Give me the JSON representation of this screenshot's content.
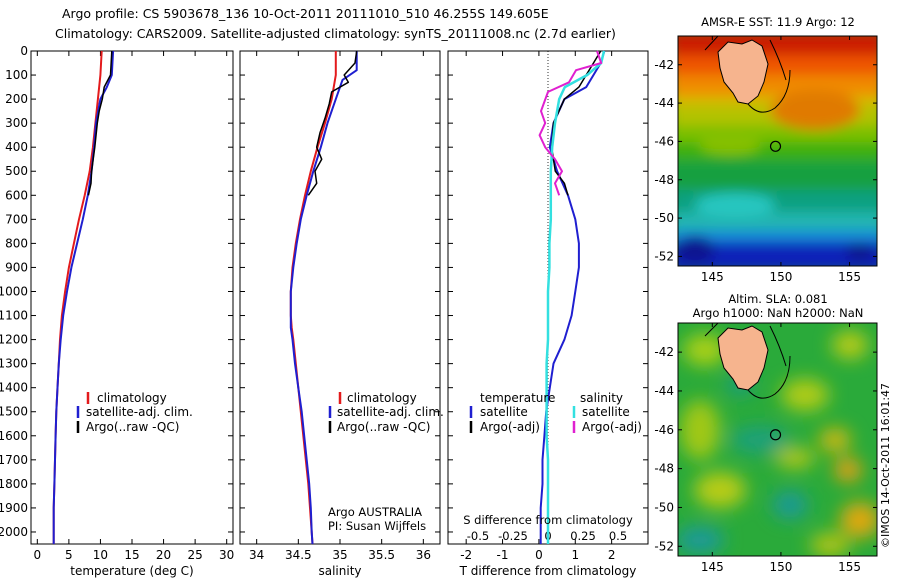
{
  "header": {
    "line1": "Argo profile: CS 5903678_136 10-Oct-2011 20111010_510 46.255S 149.605E",
    "line2": "Climatology: CARS2009. Satellite-adjusted climatology: synTS_20111008.nc (2.7d earlier)"
  },
  "credit": "©IMOS 14-Oct-2011 16:01:47",
  "attribution": {
    "line1": "Argo AUSTRALIA",
    "line2": "PI: Susan Wijffels"
  },
  "colors": {
    "climatology": "#e31a1c",
    "satellite": "#1f1fd0",
    "argo": "#000000",
    "sat_salinity": "#33e0e0",
    "argo_salinity": "#e020d0",
    "land": "#f6b48e"
  },
  "chart_data": [
    {
      "id": "temperature",
      "type": "line",
      "xlabel": "temperature (deg C)",
      "ylabel": "",
      "xlim": [
        -1,
        31
      ],
      "ylim": [
        2050,
        0
      ],
      "xticks": [
        "0",
        "5",
        "10",
        "15",
        "20",
        "25",
        "30"
      ],
      "yticks": [
        "0",
        "100",
        "200",
        "300",
        "400",
        "500",
        "600",
        "700",
        "800",
        "900",
        "1000",
        "1100",
        "1200",
        "1300",
        "1400",
        "1500",
        "1600",
        "1700",
        "1800",
        "1900",
        "2000"
      ],
      "legend": [
        "climatology",
        "satellite-adj. clim.",
        "Argo(..raw -QC)"
      ],
      "series": [
        {
          "name": "climatology",
          "depth": [
            0,
            100,
            200,
            300,
            400,
            500,
            600,
            700,
            800,
            900,
            1000,
            1100,
            1200,
            1300,
            1400,
            1500,
            1600,
            1700,
            1800,
            1900,
            2000,
            2050
          ],
          "values": [
            10.2,
            10.0,
            9.6,
            9.2,
            8.8,
            8.3,
            7.5,
            6.6,
            5.8,
            5.0,
            4.4,
            3.9,
            3.6,
            3.4,
            3.2,
            3.0,
            2.9,
            2.8,
            2.7,
            2.6,
            2.6,
            2.6
          ]
        },
        {
          "name": "satellite-adj. clim.",
          "depth": [
            0,
            100,
            150,
            200,
            300,
            400,
            500,
            600,
            700,
            800,
            900,
            1000,
            1100,
            1200,
            1300,
            1400,
            1500,
            1600,
            1700,
            1800,
            1900,
            2000,
            2050
          ],
          "values": [
            12.0,
            11.8,
            11.0,
            10.0,
            9.3,
            9.0,
            8.6,
            8.0,
            7.2,
            6.3,
            5.4,
            4.7,
            4.1,
            3.7,
            3.4,
            3.2,
            3.0,
            2.9,
            2.8,
            2.7,
            2.6,
            2.6,
            2.6
          ]
        },
        {
          "name": "Argo(..raw -QC)",
          "depth": [
            0,
            100,
            150,
            200,
            250,
            300,
            400,
            500,
            550,
            600
          ],
          "values": [
            11.8,
            11.6,
            10.6,
            10.3,
            9.8,
            9.5,
            9.1,
            8.6,
            8.5,
            8.1
          ]
        }
      ]
    },
    {
      "id": "salinity",
      "type": "line",
      "xlabel": "salinity",
      "ylabel": "",
      "xlim": [
        33.8,
        36.2
      ],
      "ylim": [
        2050,
        0
      ],
      "xticks": [
        "34",
        "34.5",
        "35",
        "35.5",
        "36"
      ],
      "legend": [
        "climatology",
        "satellite-adj. clim.",
        "Argo(..raw -QC)"
      ],
      "series": [
        {
          "name": "climatology",
          "depth": [
            0,
            100,
            200,
            300,
            400,
            500,
            600,
            700,
            800,
            900,
            1000,
            1100,
            1150,
            1200,
            1300,
            1400,
            1500,
            1600,
            1700,
            1800,
            1900,
            2000,
            2050
          ],
          "values": [
            34.95,
            34.95,
            34.9,
            34.82,
            34.73,
            34.65,
            34.58,
            34.52,
            34.47,
            34.43,
            34.41,
            34.41,
            34.42,
            34.44,
            34.47,
            34.5,
            34.53,
            34.56,
            34.59,
            34.62,
            34.64,
            34.66,
            34.67
          ]
        },
        {
          "name": "satellite-adj. clim.",
          "depth": [
            0,
            80,
            120,
            200,
            300,
            400,
            500,
            600,
            700,
            800,
            900,
            1000,
            1100,
            1150,
            1200,
            1300,
            1400,
            1500,
            1600,
            1700,
            1800,
            1900,
            2000,
            2050
          ],
          "values": [
            35.2,
            35.2,
            35.03,
            34.95,
            34.85,
            34.77,
            34.68,
            34.6,
            34.53,
            34.48,
            34.44,
            34.41,
            34.41,
            34.41,
            34.43,
            34.46,
            34.5,
            34.54,
            34.57,
            34.6,
            34.63,
            34.65,
            34.66,
            34.67
          ]
        },
        {
          "name": "Argo(..raw -QC)",
          "depth": [
            0,
            50,
            100,
            130,
            170,
            220,
            280,
            340,
            400,
            450,
            500,
            550,
            600
          ],
          "values": [
            35.2,
            35.18,
            35.05,
            35.1,
            34.9,
            34.87,
            34.82,
            34.76,
            34.72,
            34.78,
            34.7,
            34.72,
            34.62
          ]
        }
      ]
    },
    {
      "id": "differences",
      "type": "line",
      "xlabel": "T difference from climatology",
      "xlabel_top": "S difference from climatology",
      "xlim": [
        -2.5,
        3.0
      ],
      "ylim": [
        2050,
        0
      ],
      "xticks": [
        "-2",
        "-1",
        "0",
        "1",
        "2"
      ],
      "sticks": [
        "-0.5",
        "-0.25",
        "0",
        "0.25",
        "0.5"
      ],
      "legend_temperature_title": "temperature",
      "legend_salinity_title": "salinity",
      "legend": [
        "satellite",
        "Argo(-adj)",
        "satellite",
        "Argo(-adj)"
      ],
      "series": [
        {
          "name": "T satellite",
          "depth": [
            0,
            50,
            100,
            150,
            200,
            300,
            400,
            500,
            600,
            700,
            800,
            900,
            1000,
            1100,
            1200,
            1300,
            1400,
            1500,
            1600,
            1700,
            1800,
            1900,
            2000,
            2050
          ],
          "values": [
            1.8,
            1.7,
            1.5,
            1.3,
            0.7,
            0.4,
            0.3,
            0.5,
            0.8,
            1.0,
            1.1,
            1.1,
            1.0,
            0.9,
            0.7,
            0.4,
            0.3,
            0.2,
            0.15,
            0.1,
            0.1,
            0.05,
            0.05,
            0.05
          ]
        },
        {
          "name": "T Argo(-adj)",
          "depth": [
            0,
            50,
            100,
            150,
            200,
            300,
            400,
            500,
            550,
            600
          ],
          "values": [
            1.7,
            1.5,
            1.3,
            1.1,
            0.7,
            0.4,
            0.35,
            0.45,
            0.7,
            0.8
          ]
        },
        {
          "name": "S satellite",
          "depth": [
            0,
            50,
            100,
            150,
            200,
            300,
            400,
            500,
            600,
            700,
            800,
            900,
            1000,
            1100,
            1200,
            1300,
            1400,
            1500,
            1600,
            1700,
            1800,
            1900,
            2000,
            2050
          ],
          "values": [
            0.4,
            0.38,
            0.28,
            0.12,
            0.08,
            0.05,
            0.03,
            0.02,
            0.02,
            0.02,
            0.01,
            0.01,
            0.0,
            0.0,
            0.0,
            -0.01,
            -0.01,
            -0.01,
            -0.01,
            0.0,
            0.0,
            0.0,
            0.0,
            0.0
          ]
        },
        {
          "name": "S Argo(-adj)",
          "depth": [
            0,
            50,
            80,
            130,
            170,
            250,
            300,
            350,
            400,
            450,
            500,
            550,
            600
          ],
          "values": [
            0.35,
            0.38,
            0.2,
            0.15,
            0.0,
            -0.05,
            -0.02,
            -0.06,
            -0.02,
            0.05,
            0.1,
            0.05,
            0.08
          ]
        }
      ]
    },
    {
      "id": "sst_map",
      "type": "heatmap",
      "title": "AMSR-E SST: 11.9 Argo: 12",
      "xticks": [
        "145",
        "150",
        "155"
      ],
      "yticks": [
        "-42",
        "-44",
        "-46",
        "-48",
        "-50",
        "-52"
      ],
      "xlim": [
        142.5,
        157
      ],
      "ylim": [
        -52.5,
        -40.5
      ],
      "argo_position": [
        149.605,
        -46.255
      ]
    },
    {
      "id": "sla_map",
      "type": "heatmap",
      "title_line1": "Altim. SLA: 0.081",
      "title_line2": "Argo h1000: NaN h2000: NaN",
      "xticks": [
        "145",
        "150",
        "155"
      ],
      "yticks": [
        "-42",
        "-44",
        "-46",
        "-48",
        "-50",
        "-52"
      ],
      "xlim": [
        142.5,
        157
      ],
      "ylim": [
        -52.5,
        -40.5
      ],
      "argo_position": [
        149.605,
        -46.255
      ]
    }
  ]
}
